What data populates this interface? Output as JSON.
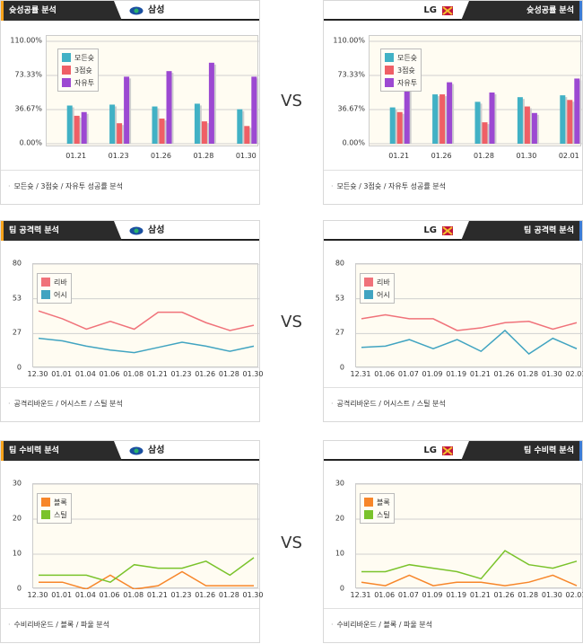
{
  "colors": {
    "fg": "#41b1c5",
    "p3": "#ef5f66",
    "ft": "#9c49d2",
    "reb": "#f0727a",
    "ast": "#41a4c1",
    "blk": "#f7862a",
    "stl": "#7ac32b"
  },
  "vs_label": "VS",
  "teams": {
    "home": "삼성",
    "away": "LG"
  },
  "sections": [
    {
      "title": "슛성공률 분석",
      "footer": "모든슛 / 3점슛 / 자유투 성공률 분석",
      "legend": [
        "모든슛",
        "3점슛",
        "자유투"
      ]
    },
    {
      "title": "팀 공격력 분석",
      "footer": "공격리바운드 / 어시스트 / 스틸 분석",
      "legend": [
        "리바",
        "어시"
      ]
    },
    {
      "title": "팀 수비력 분석",
      "footer": "수비리바운드 / 블록 / 파울 분석",
      "legend": [
        "블록",
        "스틸"
      ]
    }
  ],
  "chart_data": [
    {
      "id": "shoot-home",
      "type": "bar",
      "ylim": [
        0,
        110
      ],
      "yticks": [
        "0.00%",
        "36.67%",
        "73.33%",
        "110.00%"
      ],
      "categories": [
        "01.21",
        "01.23",
        "01.26",
        "01.28",
        "01.30"
      ],
      "series": [
        {
          "name": "모든슛",
          "values": [
            41,
            42,
            40,
            43,
            37
          ]
        },
        {
          "name": "3점슛",
          "values": [
            30,
            22,
            27,
            24,
            19
          ]
        },
        {
          "name": "자유투",
          "values": [
            34,
            72,
            78,
            87,
            72
          ]
        }
      ]
    },
    {
      "id": "shoot-away",
      "type": "bar",
      "ylim": [
        0,
        110
      ],
      "yticks": [
        "0.00%",
        "36.67%",
        "73.33%",
        "110.00%"
      ],
      "categories": [
        "01.21",
        "01.26",
        "01.28",
        "01.30",
        "02.01"
      ],
      "series": [
        {
          "name": "모든슛",
          "values": [
            39,
            53,
            45,
            50,
            52
          ]
        },
        {
          "name": "3점슛",
          "values": [
            34,
            53,
            23,
            40,
            47
          ]
        },
        {
          "name": "자유투",
          "values": [
            62,
            66,
            55,
            33,
            70
          ]
        }
      ]
    },
    {
      "id": "off-home",
      "type": "line",
      "ylim": [
        0,
        80
      ],
      "yticks": [
        "0",
        "27",
        "53",
        "80"
      ],
      "categories": [
        "12.30",
        "01.01",
        "01.04",
        "01.06",
        "01.08",
        "01.21",
        "01.23",
        "01.26",
        "01.28",
        "01.30"
      ],
      "series": [
        {
          "name": "리바",
          "values": [
            44,
            38,
            30,
            36,
            30,
            43,
            43,
            35,
            29,
            33
          ]
        },
        {
          "name": "어시",
          "values": [
            23,
            21,
            17,
            14,
            12,
            16,
            20,
            17,
            13,
            17
          ]
        }
      ]
    },
    {
      "id": "off-away",
      "type": "line",
      "ylim": [
        0,
        80
      ],
      "yticks": [
        "0",
        "27",
        "53",
        "80"
      ],
      "categories": [
        "12.31",
        "01.06",
        "01.07",
        "01.09",
        "01.19",
        "01.21",
        "01.26",
        "01.28",
        "01.30",
        "02.01"
      ],
      "series": [
        {
          "name": "리바",
          "values": [
            38,
            41,
            38,
            38,
            29,
            31,
            35,
            36,
            30,
            35
          ]
        },
        {
          "name": "어시",
          "values": [
            16,
            17,
            22,
            15,
            22,
            13,
            29,
            11,
            23,
            15
          ]
        }
      ]
    },
    {
      "id": "def-home",
      "type": "line",
      "ylim": [
        0,
        30
      ],
      "yticks": [
        "0",
        "10",
        "20",
        "30"
      ],
      "categories": [
        "12.30",
        "01.01",
        "01.04",
        "01.06",
        "01.08",
        "01.21",
        "01.23",
        "01.26",
        "01.28",
        "01.30"
      ],
      "series": [
        {
          "name": "블록",
          "values": [
            2,
            2,
            0,
            4,
            0,
            1,
            5,
            1,
            1,
            1
          ]
        },
        {
          "name": "스틸",
          "values": [
            4,
            4,
            4,
            2,
            7,
            6,
            6,
            8,
            4,
            9
          ]
        }
      ]
    },
    {
      "id": "def-away",
      "type": "line",
      "ylim": [
        0,
        30
      ],
      "yticks": [
        "0",
        "10",
        "20",
        "30"
      ],
      "categories": [
        "12.31",
        "01.06",
        "01.07",
        "01.09",
        "01.19",
        "01.21",
        "01.26",
        "01.28",
        "01.30",
        "02.01"
      ],
      "series": [
        {
          "name": "블록",
          "values": [
            2,
            1,
            4,
            1,
            2,
            2,
            1,
            2,
            4,
            1
          ]
        },
        {
          "name": "스틸",
          "values": [
            5,
            5,
            7,
            6,
            5,
            3,
            11,
            7,
            6,
            8
          ]
        }
      ]
    }
  ]
}
